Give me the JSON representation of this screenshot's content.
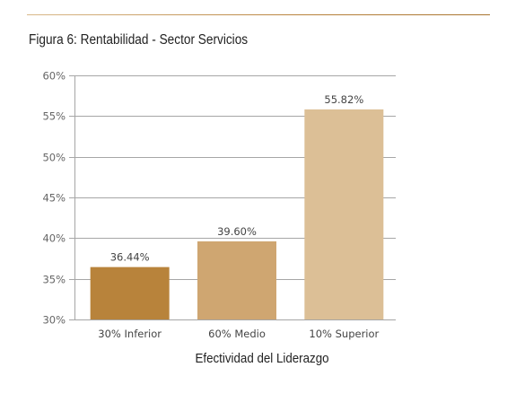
{
  "chart_data": {
    "type": "bar",
    "title": "Figura 6: Rentabilidad - Sector Servicios",
    "xlabel": "Efectividad del Liderazgo",
    "ylabel": "",
    "categories": [
      "30% Inferior",
      "60% Medio",
      "10% Superior"
    ],
    "values": [
      36.44,
      39.6,
      55.82
    ],
    "value_labels": [
      "36.44%",
      "39.60%",
      "55.82%"
    ],
    "bar_colors": [
      "#b8833b",
      "#cfa671",
      "#dcbf96"
    ],
    "ylim": [
      30,
      60
    ],
    "yticks": [
      30,
      35,
      40,
      45,
      50,
      55,
      60
    ],
    "ytick_labels": [
      "30%",
      "35%",
      "40%",
      "45%",
      "50%",
      "55%",
      "60%"
    ],
    "grid": true,
    "gridline_color": "#a6a6a6"
  }
}
